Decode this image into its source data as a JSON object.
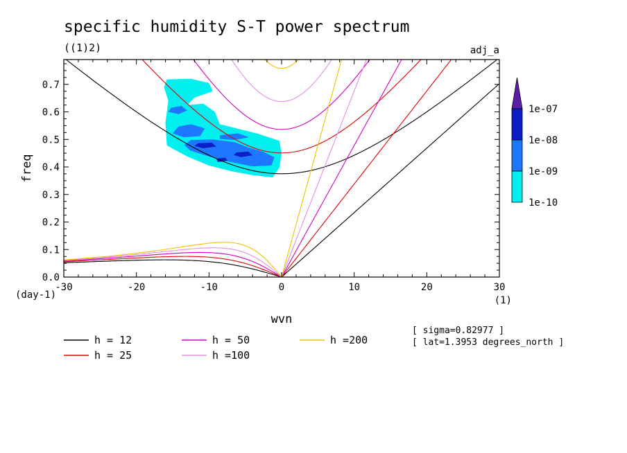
{
  "chart_data": {
    "type": "contour",
    "title": "specific humidity S-T power spectrum",
    "subtitle": "((1)2)",
    "top_right_label": "adj_a",
    "xlabel": "wvn",
    "ylabel": "freq",
    "x_unit": "(1)",
    "y_unit": "(day-1)",
    "xlim": [
      -30,
      30
    ],
    "ylim": [
      0,
      0.79
    ],
    "xticks": [
      "-30",
      "-20",
      "-10",
      "0",
      "10",
      "20",
      "30"
    ],
    "yticks": [
      "0.0",
      "0.1",
      "0.2",
      "0.3",
      "0.4",
      "0.5",
      "0.6",
      "0.7"
    ],
    "colorbar": {
      "labels": [
        "1e-07",
        "1e-08",
        "1e-09",
        "1e-10"
      ],
      "colors": [
        "#5a1ea8",
        "#0c1ec8",
        "#1e78ff",
        "#00f0f0"
      ]
    },
    "series": [
      {
        "name": "h = 12",
        "h": 12,
        "color": "#000000"
      },
      {
        "name": "h = 25",
        "h": 25,
        "color": "#e00000"
      },
      {
        "name": "h = 50",
        "h": 50,
        "color": "#d000c0"
      },
      {
        "name": "h =100",
        "h": 100,
        "color": "#e090e0"
      },
      {
        "name": "h =200",
        "h": 200,
        "color": "#f0c000"
      }
    ],
    "info": {
      "sigma": "[ sigma=0.82977 ]",
      "lat": "[ lat=1.3953 degrees_north ]"
    },
    "contour_region": {
      "x": [
        -16,
        0
      ],
      "y": [
        0.36,
        0.72
      ]
    }
  }
}
